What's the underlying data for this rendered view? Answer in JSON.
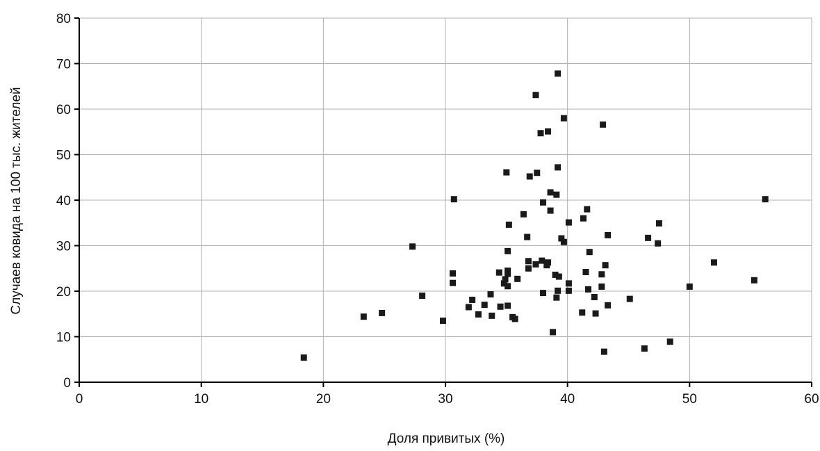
{
  "chart_data": {
    "type": "scatter",
    "title": "",
    "xlabel": "Доля привитых (%)",
    "ylabel": "Случаев ковида на 100 тыс. жителей",
    "xlim": [
      0,
      60
    ],
    "ylim": [
      0,
      80
    ],
    "x_ticks": [
      0,
      10,
      20,
      30,
      40,
      50,
      60
    ],
    "y_ticks": [
      0,
      10,
      20,
      30,
      40,
      50,
      60,
      70,
      80
    ],
    "x_tick_labels": [
      "0",
      "10",
      "20",
      "30",
      "40",
      "50",
      "60"
    ],
    "y_tick_labels": [
      "0",
      "10",
      "20",
      "30",
      "40",
      "50",
      "60",
      "70",
      "80"
    ],
    "grid": true,
    "legend": "none",
    "marker_color": "#1a1a1a",
    "gridline_color": "#b0b0b0",
    "series": [
      {
        "marker": "square",
        "points": [
          [
            18.4,
            5.4
          ],
          [
            23.3,
            14.4
          ],
          [
            24.8,
            15.2
          ],
          [
            27.3,
            29.8
          ],
          [
            28.1,
            19.0
          ],
          [
            29.8,
            13.5
          ],
          [
            30.6,
            23.9
          ],
          [
            30.6,
            21.8
          ],
          [
            30.7,
            40.2
          ],
          [
            31.9,
            16.5
          ],
          [
            32.2,
            18.1
          ],
          [
            32.7,
            14.9
          ],
          [
            33.2,
            17.0
          ],
          [
            33.7,
            19.3
          ],
          [
            33.8,
            14.6
          ],
          [
            34.4,
            24.1
          ],
          [
            34.5,
            16.6
          ],
          [
            34.8,
            21.7
          ],
          [
            34.9,
            22.6
          ],
          [
            35.0,
            46.1
          ],
          [
            35.1,
            28.8
          ],
          [
            35.1,
            24.5
          ],
          [
            35.1,
            23.8
          ],
          [
            35.1,
            21.1
          ],
          [
            35.1,
            16.8
          ],
          [
            35.2,
            34.6
          ],
          [
            35.5,
            14.3
          ],
          [
            35.7,
            13.9
          ],
          [
            35.9,
            22.7
          ],
          [
            36.4,
            36.9
          ],
          [
            36.7,
            31.9
          ],
          [
            36.8,
            26.6
          ],
          [
            36.8,
            25.0
          ],
          [
            36.9,
            45.2
          ],
          [
            37.4,
            63.1
          ],
          [
            37.4,
            25.9
          ],
          [
            37.5,
            46.0
          ],
          [
            37.8,
            54.7
          ],
          [
            37.9,
            26.7
          ],
          [
            38.0,
            39.5
          ],
          [
            38.0,
            19.6
          ],
          [
            38.3,
            25.7
          ],
          [
            38.4,
            55.1
          ],
          [
            38.4,
            26.3
          ],
          [
            38.6,
            41.7
          ],
          [
            38.6,
            37.7
          ],
          [
            38.8,
            11.0
          ],
          [
            39.0,
            23.6
          ],
          [
            39.1,
            41.2
          ],
          [
            39.1,
            18.6
          ],
          [
            39.2,
            67.8
          ],
          [
            39.2,
            47.2
          ],
          [
            39.2,
            20.1
          ],
          [
            39.3,
            23.2
          ],
          [
            39.5,
            31.6
          ],
          [
            39.7,
            58.0
          ],
          [
            39.7,
            30.8
          ],
          [
            40.1,
            35.1
          ],
          [
            40.1,
            21.7
          ],
          [
            40.1,
            20.1
          ],
          [
            41.2,
            15.3
          ],
          [
            41.3,
            36.0
          ],
          [
            41.5,
            24.2
          ],
          [
            41.6,
            38.0
          ],
          [
            41.7,
            20.4
          ],
          [
            41.8,
            28.6
          ],
          [
            42.2,
            18.7
          ],
          [
            42.3,
            15.1
          ],
          [
            42.8,
            23.7
          ],
          [
            42.8,
            21.0
          ],
          [
            42.9,
            56.6
          ],
          [
            43.0,
            6.7
          ],
          [
            43.1,
            25.7
          ],
          [
            43.3,
            32.3
          ],
          [
            43.3,
            16.9
          ],
          [
            45.1,
            18.3
          ],
          [
            46.3,
            7.4
          ],
          [
            46.6,
            31.7
          ],
          [
            47.4,
            30.5
          ],
          [
            47.5,
            34.9
          ],
          [
            48.4,
            8.9
          ],
          [
            50.0,
            21.0
          ],
          [
            52.0,
            26.3
          ],
          [
            55.3,
            22.4
          ],
          [
            56.2,
            40.2
          ]
        ]
      }
    ]
  }
}
